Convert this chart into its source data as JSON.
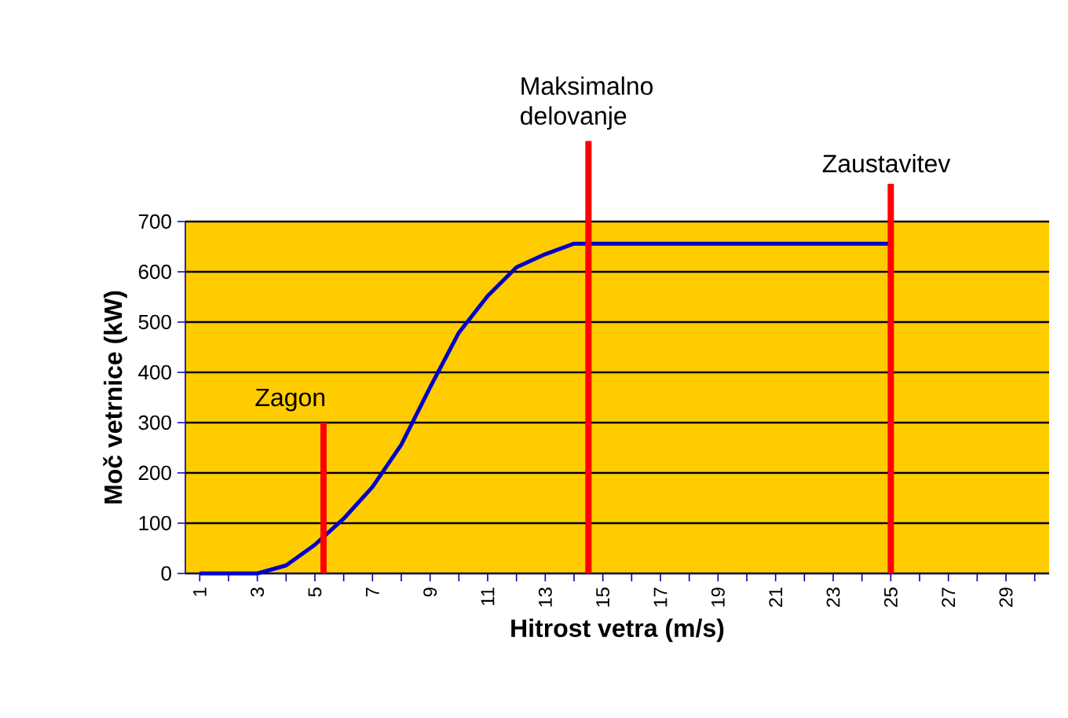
{
  "chart_data": {
    "type": "line",
    "xlabel": "Hitrost vetra (m/s)",
    "ylabel": "Moč vetrnice (kW)",
    "x": [
      1,
      2,
      3,
      4,
      5,
      6,
      7,
      8,
      9,
      10,
      11,
      12,
      13,
      14,
      15,
      16,
      17,
      18,
      19,
      20,
      21,
      22,
      23,
      24,
      25
    ],
    "series": [
      {
        "color": "#0000cc",
        "values": [
          0,
          0,
          0,
          16,
          57,
          109,
          172,
          256,
          370,
          479,
          552,
          609,
          635,
          656,
          656,
          656,
          656,
          656,
          656,
          656,
          656,
          656,
          656,
          656,
          656
        ]
      }
    ],
    "xlim": [
      0.5,
      30.5
    ],
    "xticks": [
      1,
      {
        "value": 2,
        "label": null
      },
      3,
      {
        "value": 4,
        "label": null
      },
      5,
      {
        "value": 6,
        "label": null
      },
      7,
      {
        "value": 8,
        "label": null
      },
      9,
      {
        "value": 10,
        "label": null
      },
      11,
      {
        "value": 12,
        "label": null
      },
      13,
      {
        "value": 14,
        "label": null
      },
      15,
      {
        "value": 16,
        "label": null
      },
      17,
      {
        "value": 18,
        "label": null
      },
      19,
      {
        "value": 20,
        "label": null
      },
      21,
      {
        "value": 22,
        "label": null
      },
      23,
      {
        "value": 24,
        "label": null
      },
      25,
      {
        "value": 26,
        "label": null
      },
      27,
      {
        "value": 28,
        "label": null
      },
      29,
      {
        "value": 30,
        "label": null
      }
    ],
    "ylim": [
      0,
      700
    ],
    "yticks": [
      0,
      100,
      200,
      300,
      400,
      500,
      600,
      700
    ],
    "grid": "y",
    "marker": "none",
    "line_style": "solid",
    "ref_lines": [
      {
        "axis": "x",
        "value": 5.3,
        "label": "Zagon",
        "color": "#ff0000"
      },
      {
        "axis": "x",
        "value": 14.5,
        "label": "Maksimalno delovanje",
        "color": "#ff0000"
      },
      {
        "axis": "x",
        "value": 25,
        "label": "Zaustavitev",
        "color": "#ff0000"
      }
    ]
  }
}
